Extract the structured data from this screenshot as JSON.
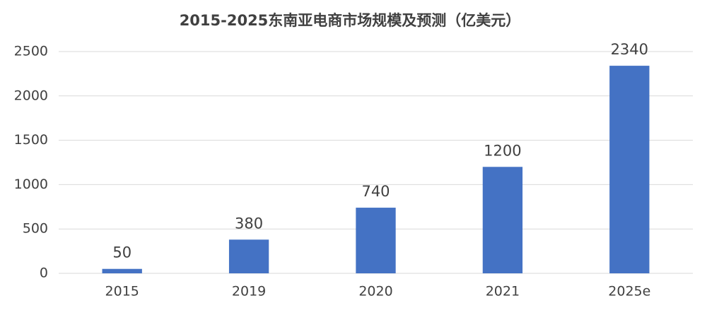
{
  "chart_data": {
    "type": "bar",
    "title": "2015-2025东南亚电商市场规模及预测（亿美元）",
    "categories": [
      "2015",
      "2019",
      "2020",
      "2021",
      "2025e"
    ],
    "values": [
      50,
      380,
      740,
      1200,
      2340
    ],
    "color": "#4472c4",
    "ylim": [
      0,
      2500
    ],
    "yticks": [
      0,
      500,
      1000,
      1500,
      2000,
      2500
    ],
    "grid": true
  }
}
